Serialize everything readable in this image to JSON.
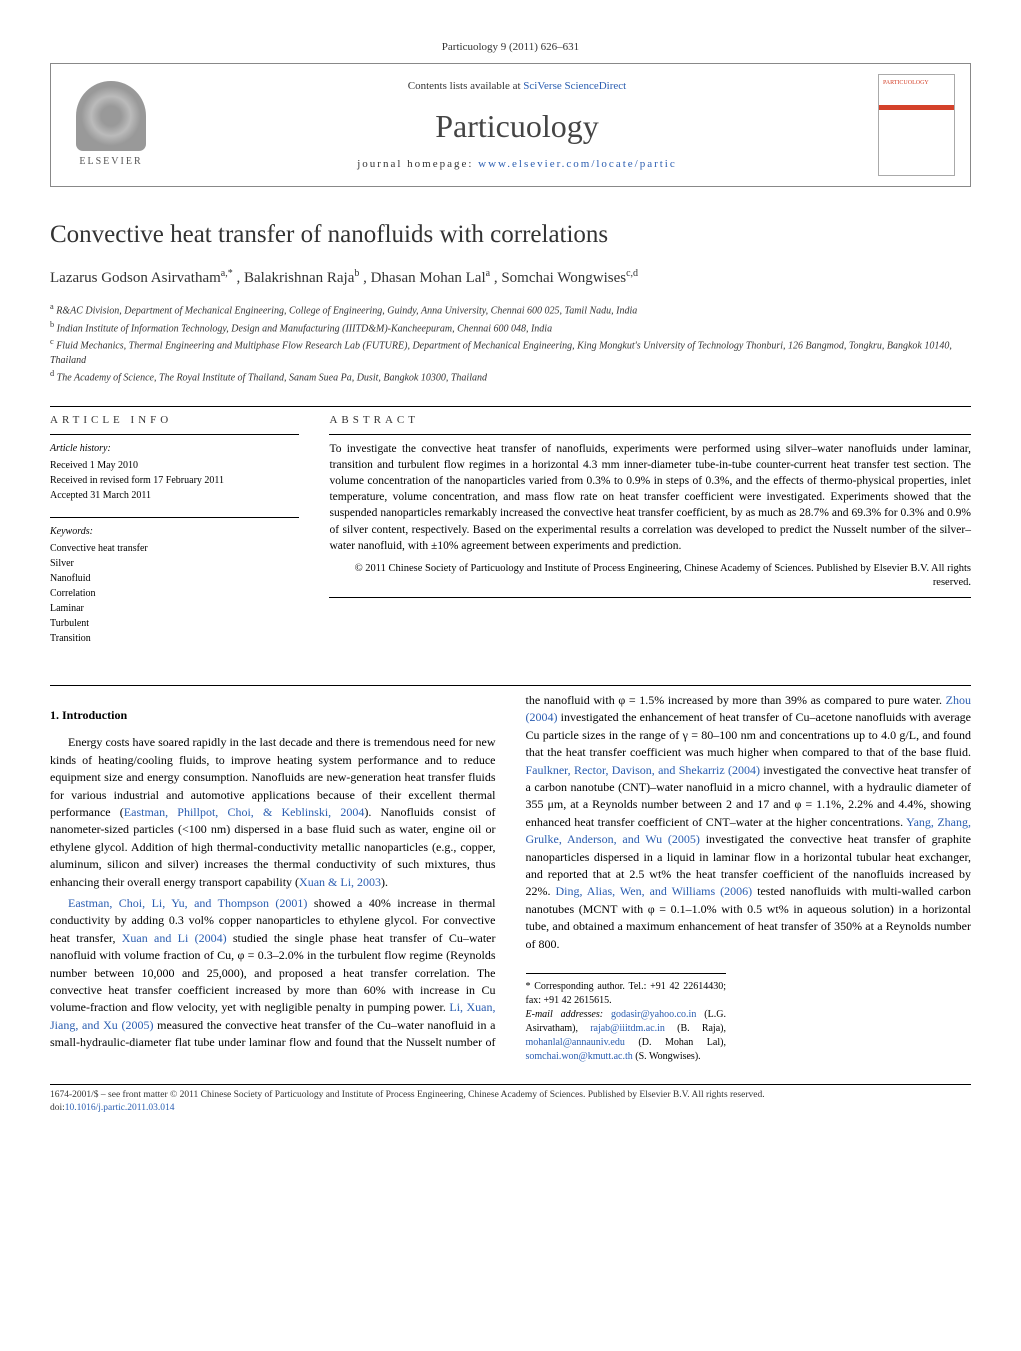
{
  "header": {
    "citation": "Particuology 9 (2011) 626–631",
    "contents": "Contents lists available at ",
    "contents_link": "SciVerse ScienceDirect",
    "journal_name": "Particuology",
    "homepage_label": "journal homepage: ",
    "homepage_url": "www.elsevier.com/locate/partic",
    "elsevier": "ELSEVIER"
  },
  "title": "Convective heat transfer of nanofluids with correlations",
  "authors_html": "Lazarus Godson Asirvatham",
  "authors": {
    "a1": "Lazarus Godson Asirvatham",
    "a1_sup": "a,*",
    "a2": ", Balakrishnan Raja",
    "a2_sup": "b",
    "a3": ", Dhasan Mohan Lal",
    "a3_sup": "a",
    "a4": ", Somchai Wongwises",
    "a4_sup": "c,d"
  },
  "affiliations": {
    "a": "R&AC Division, Department of Mechanical Engineering, College of Engineering, Guindy, Anna University, Chennai 600 025, Tamil Nadu, India",
    "b": "Indian Institute of Information Technology, Design and Manufacturing (IIITD&M)-Kancheepuram, Chennai 600 048, India",
    "c": "Fluid Mechanics, Thermal Engineering and Multiphase Flow Research Lab (FUTURE), Department of Mechanical Engineering, King Mongkut's University of Technology Thonburi, 126 Bangmod, Tongkru, Bangkok 10140, Thailand",
    "d": "The Academy of Science, The Royal Institute of Thailand, Sanam Suea Pa, Dusit, Bangkok 10300, Thailand"
  },
  "article_info": {
    "label": "ARTICLE INFO",
    "history_heading": "Article history:",
    "received": "Received 1 May 2010",
    "revised": "Received in revised form 17 February 2011",
    "accepted": "Accepted 31 March 2011",
    "keywords_heading": "Keywords:",
    "keywords": [
      "Convective heat transfer",
      "Silver",
      "Nanofluid",
      "Correlation",
      "Laminar",
      "Turbulent",
      "Transition"
    ]
  },
  "abstract": {
    "label": "ABSTRACT",
    "text": "To investigate the convective heat transfer of nanofluids, experiments were performed using silver–water nanofluids under laminar, transition and turbulent flow regimes in a horizontal 4.3 mm inner-diameter tube-in-tube counter-current heat transfer test section. The volume concentration of the nanoparticles varied from 0.3% to 0.9% in steps of 0.3%, and the effects of thermo-physical properties, inlet temperature, volume concentration, and mass flow rate on heat transfer coefficient were investigated. Experiments showed that the suspended nanoparticles remarkably increased the convective heat transfer coefficient, by as much as 28.7% and 69.3% for 0.3% and 0.9% of silver content, respectively. Based on the experimental results a correlation was developed to predict the Nusselt number of the silver–water nanofluid, with ±10% agreement between experiments and prediction.",
    "copyright": "© 2011 Chinese Society of Particuology and Institute of Process Engineering, Chinese Academy of Sciences. Published by Elsevier B.V. All rights reserved."
  },
  "body": {
    "sec1_heading": "1. Introduction",
    "p1": "Energy costs have soared rapidly in the last decade and there is tremendous need for new kinds of heating/cooling fluids, to improve heating system performance and to reduce equipment size and energy consumption. Nanofluids are new-generation heat transfer fluids for various industrial and automotive applications because of their excellent thermal performance (",
    "p1_ref1": "Eastman, Phillpot, Choi, & Keblinski, 2004",
    "p1b": "). Nanofluids consist of nanometer-sized particles (<100 nm) dispersed in a base fluid such as water, engine oil or ethylene glycol. Addition of high thermal-conductivity metallic nanoparticles (e.g., copper, aluminum, silicon and silver) increases the thermal conductivity of such mixtures, thus enhancing their overall energy transport capability (",
    "p1_ref2": "Xuan & Li, 2003",
    "p1c": ").",
    "p2_ref1": "Eastman, Choi, Li, Yu, and Thompson (2001)",
    "p2a": " showed a 40% increase in thermal conductivity by adding 0.3 vol% copper nanoparticles to ethylene glycol. For convective heat transfer, ",
    "p2_ref2": "Xuan and Li (2004)",
    "p2b": " studied the single phase heat transfer of Cu–water nanofluid with volume fraction of Cu, φ = 0.3–2.0% in the turbulent flow regime (Reynolds number between 10,000 and 25,000), and ",
    "p3a": "proposed a heat transfer correlation. The convective heat transfer coefficient increased by more than 60% with increase in Cu volume-fraction and flow velocity, yet with negligible penalty in pumping power. ",
    "p3_ref1": "Li, Xuan, Jiang, and Xu (2005)",
    "p3b": " measured the convective heat transfer of the Cu–water nanofluid in a small-hydraulic-diameter flat tube under laminar flow and found that the Nusselt number of the nanofluid with φ = 1.5% increased by more than 39% as compared to pure water. ",
    "p3_ref2": "Zhou (2004)",
    "p3c": " investigated the enhancement of heat transfer of Cu–acetone nanofluids with average Cu particle sizes in the range of γ = 80–100 nm and concentrations up to 4.0 g/L, and found that the heat transfer coefficient was much higher when compared to that of the base fluid. ",
    "p3_ref3": "Faulkner, Rector, Davison, and Shekarriz (2004)",
    "p3d": " investigated the convective heat transfer of a carbon nanotube (CNT)–water nanofluid in a micro channel, with a hydraulic diameter of 355 μm, at a Reynolds number between 2 and 17 and φ = 1.1%, 2.2% and 4.4%, showing enhanced heat transfer coefficient of CNT–water at the higher concentrations. ",
    "p3_ref4": "Yang, Zhang, Grulke, Anderson, and Wu (2005)",
    "p3e": " investigated the convective heat transfer of graphite nanoparticles dispersed in a liquid in laminar flow in a horizontal tubular heat exchanger, and reported that at 2.5 wt% the heat transfer coefficient of the nanofluids increased by 22%. ",
    "p3_ref5": "Ding, Alias, Wen, and Williams (2006)",
    "p3f": " tested nanofluids with multi-walled carbon nanotubes (MCNT with φ = 0.1–1.0% with 0.5 wt% in aqueous solution) in a horizontal tube, and obtained a maximum enhancement of heat transfer of 350% at a Reynolds number of 800."
  },
  "footnote": {
    "corresponding": "* Corresponding author. Tel.: +91 42 22614430; fax: +91 42 2615615.",
    "email_label": "E-mail addresses: ",
    "e1": "godasir@yahoo.co.in",
    "e1_who": " (L.G. Asirvatham), ",
    "e2": "rajab@iiitdm.ac.in",
    "e2_who": " (B. Raja), ",
    "e3": "mohanlal@annauniv.edu",
    "e3_who": " (D. Mohan Lal), ",
    "e4": "somchai.won@kmutt.ac.th",
    "e4_who": " (S. Wongwises)."
  },
  "footer": {
    "left": "1674-2001/$ – see front matter © 2011 Chinese Society of Particuology and Institute of Process Engineering, Chinese Academy of Sciences. Published by Elsevier B.V. All rights reserved.",
    "doi_label": "doi:",
    "doi": "10.1016/j.partic.2011.03.014"
  },
  "colors": {
    "link": "#2a5db0",
    "text": "#000000",
    "accent": "#d4412a"
  }
}
